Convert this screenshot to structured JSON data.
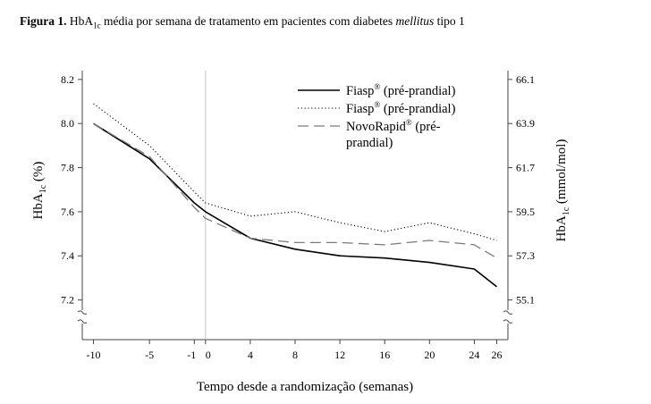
{
  "caption": {
    "label": "Figura 1.",
    "text_a": " HbA",
    "sub": "1c",
    "text_b": " média por semana de tratamento em pacientes com diabetes ",
    "italic": "mellitus",
    "text_c": " tipo 1"
  },
  "chart_data": {
    "type": "line",
    "xlabel": "Tempo desde a randomização (semanas)",
    "ylabel": {
      "main": "HbA",
      "sub": "1c",
      "unit": " (%)"
    },
    "ylabel_right": {
      "main": "HbA",
      "sub": "1c",
      "unit": " (mmol/mol)"
    },
    "x_ticks": [
      -10,
      -5,
      -1,
      0,
      4,
      8,
      12,
      16,
      20,
      24,
      26
    ],
    "x_tick_labels": [
      "-10",
      "-5",
      "-1",
      "0",
      "4",
      "8",
      "12",
      "16",
      "20",
      "24",
      "26"
    ],
    "y_ticks": [
      8.2,
      8.0,
      7.8,
      7.6,
      7.4,
      7.2
    ],
    "y_tick_labels": [
      "8.2",
      "8.0",
      "7.8",
      "7.6",
      "7.4",
      "7.2"
    ],
    "y_right_ticks": [
      8.2,
      8.0,
      7.8,
      7.6,
      7.4,
      7.2
    ],
    "y_right_tick_labels": [
      "66.1",
      "63.9",
      "61.7",
      "59.5",
      "57.3",
      "55.1"
    ],
    "xlim": [
      -11,
      27
    ],
    "ylim": [
      7.02,
      8.24
    ],
    "axis_break": true,
    "reference_line_x": 0,
    "legend_position": "top-right",
    "series": [
      {
        "name": "Fiasp® (pré-prandial)",
        "style": "solid",
        "color": "#000000",
        "x": [
          -10,
          -5,
          -1,
          0,
          4,
          8,
          12,
          16,
          20,
          24,
          26
        ],
        "values": [
          8.0,
          7.84,
          7.64,
          7.6,
          7.48,
          7.43,
          7.4,
          7.39,
          7.37,
          7.34,
          7.26
        ]
      },
      {
        "name": "Fiasp® (pré-prandial)",
        "style": "dotted",
        "color": "#000000",
        "x": [
          -10,
          -5,
          -1,
          0,
          4,
          8,
          12,
          16,
          20,
          24,
          26
        ],
        "values": [
          8.09,
          7.9,
          7.69,
          7.64,
          7.58,
          7.6,
          7.55,
          7.51,
          7.55,
          7.5,
          7.47
        ]
      },
      {
        "name": "NovoRapid® (pré-prandial)",
        "style": "dashed",
        "color": "#000000",
        "x": [
          -10,
          -5,
          -1,
          0,
          4,
          8,
          12,
          16,
          20,
          24,
          26
        ],
        "values": [
          8.0,
          7.85,
          7.62,
          7.57,
          7.48,
          7.46,
          7.46,
          7.45,
          7.47,
          7.45,
          7.39
        ]
      }
    ],
    "legend": [
      {
        "base": "Fiasp",
        "sup": "®",
        "rest": " (pré-prandial)",
        "rest2": ""
      },
      {
        "base": "Fiasp",
        "sup": "®",
        "rest": " (pré-prandial)",
        "rest2": ""
      },
      {
        "base": "NovoRapid",
        "sup": "®",
        "rest": " (pré-",
        "rest2": "prandial)"
      }
    ]
  }
}
